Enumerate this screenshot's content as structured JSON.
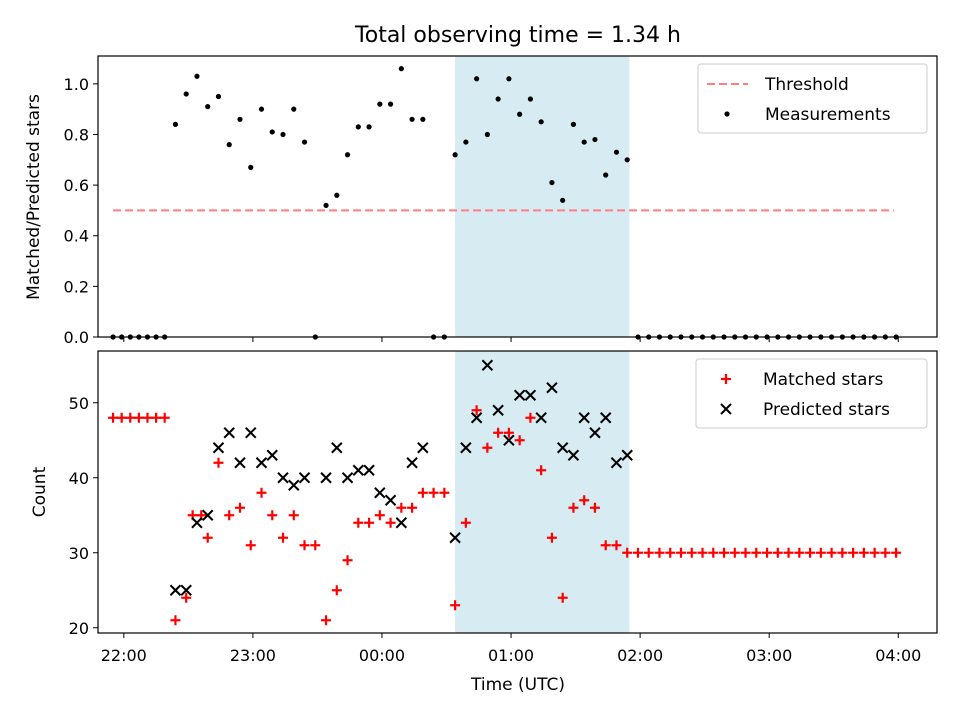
{
  "colors": {
    "threshold": "#ff7f7f",
    "measurements": "#000000",
    "matched": "#ff0000",
    "predicted": "#000000",
    "highlight": "#add8e6"
  },
  "chart_data": [
    {
      "type": "scatter",
      "title": "Total observing time = 1.34 h",
      "xlabel": "",
      "ylabel": "Matched/Predicted stars",
      "xlim": [
        "21:48",
        "04:18"
      ],
      "ylim": [
        0,
        1.11
      ],
      "yticks": [
        "0.0",
        "0.2",
        "0.4",
        "0.6",
        "0.8",
        "1.0"
      ],
      "grid": false,
      "legend_position": "top-right",
      "highlight_span": [
        "00:34",
        "01:55"
      ],
      "series": [
        {
          "name": "Threshold",
          "style": "dashed-line",
          "x": [
            "21:55",
            "03:58"
          ],
          "y": [
            0.5,
            0.5
          ]
        },
        {
          "name": "Measurements",
          "style": "dots",
          "points": [
            [
              "21:55",
              0
            ],
            [
              "21:59",
              0
            ],
            [
              "22:03",
              0
            ],
            [
              "22:07",
              0
            ],
            [
              "22:11",
              0
            ],
            [
              "22:15",
              0
            ],
            [
              "22:19",
              0
            ],
            [
              "22:24",
              0.84
            ],
            [
              "22:29",
              0.96
            ],
            [
              "22:34",
              1.03
            ],
            [
              "22:39",
              0.91
            ],
            [
              "22:44",
              0.95
            ],
            [
              "22:49",
              0.76
            ],
            [
              "22:54",
              0.86
            ],
            [
              "22:59",
              0.67
            ],
            [
              "23:04",
              0.9
            ],
            [
              "23:09",
              0.81
            ],
            [
              "23:14",
              0.8
            ],
            [
              "23:19",
              0.9
            ],
            [
              "23:24",
              0.77
            ],
            [
              "23:29",
              0
            ],
            [
              "23:34",
              0.52
            ],
            [
              "23:39",
              0.56
            ],
            [
              "23:44",
              0.72
            ],
            [
              "23:49",
              0.83
            ],
            [
              "23:54",
              0.83
            ],
            [
              "23:59",
              0.92
            ],
            [
              "00:04",
              0.92
            ],
            [
              "00:09",
              1.06
            ],
            [
              "00:14",
              0.86
            ],
            [
              "00:19",
              0.86
            ],
            [
              "00:24",
              0
            ],
            [
              "00:29",
              0
            ],
            [
              "00:34",
              0.72
            ],
            [
              "00:39",
              0.77
            ],
            [
              "00:44",
              1.02
            ],
            [
              "00:49",
              0.8
            ],
            [
              "00:54",
              0.94
            ],
            [
              "00:59",
              1.02
            ],
            [
              "01:04",
              0.88
            ],
            [
              "01:09",
              0.94
            ],
            [
              "01:14",
              0.85
            ],
            [
              "01:19",
              0.61
            ],
            [
              "01:24",
              0.54
            ],
            [
              "01:29",
              0.84
            ],
            [
              "01:34",
              0.77
            ],
            [
              "01:39",
              0.78
            ],
            [
              "01:44",
              0.64
            ],
            [
              "01:49",
              0.73
            ],
            [
              "01:54",
              0.7
            ],
            [
              "01:59",
              0
            ],
            [
              "02:04",
              0
            ],
            [
              "02:09",
              0
            ],
            [
              "02:14",
              0
            ],
            [
              "02:19",
              0
            ],
            [
              "02:24",
              0
            ],
            [
              "02:29",
              0
            ],
            [
              "02:34",
              0
            ],
            [
              "02:39",
              0
            ],
            [
              "02:44",
              0
            ],
            [
              "02:49",
              0
            ],
            [
              "02:54",
              0
            ],
            [
              "02:59",
              0
            ],
            [
              "03:04",
              0
            ],
            [
              "03:09",
              0
            ],
            [
              "03:14",
              0
            ],
            [
              "03:19",
              0
            ],
            [
              "03:24",
              0
            ],
            [
              "03:29",
              0
            ],
            [
              "03:34",
              0
            ],
            [
              "03:39",
              0
            ],
            [
              "03:44",
              0
            ],
            [
              "03:49",
              0
            ],
            [
              "03:54",
              0
            ],
            [
              "03:59",
              0
            ]
          ]
        }
      ]
    },
    {
      "type": "scatter",
      "title": "",
      "xlabel": "Time (UTC)",
      "ylabel": "Count",
      "xlim": [
        "21:48",
        "04:18"
      ],
      "ylim": [
        19.3,
        56.9
      ],
      "yticks": [
        "20",
        "30",
        "40",
        "50"
      ],
      "xticks": [
        "22:00",
        "23:00",
        "00:00",
        "01:00",
        "02:00",
        "03:00",
        "04:00"
      ],
      "grid": false,
      "legend_position": "top-right",
      "highlight_span": [
        "00:34",
        "01:55"
      ],
      "series": [
        {
          "name": "Matched stars",
          "marker": "plus",
          "points": [
            [
              "21:55",
              48
            ],
            [
              "21:59",
              48
            ],
            [
              "22:03",
              48
            ],
            [
              "22:07",
              48
            ],
            [
              "22:11",
              48
            ],
            [
              "22:15",
              48
            ],
            [
              "22:19",
              48
            ],
            [
              "22:24",
              21
            ],
            [
              "22:29",
              24
            ],
            [
              "22:32",
              35
            ],
            [
              "22:36",
              35
            ],
            [
              "22:39",
              32
            ],
            [
              "22:44",
              42
            ],
            [
              "22:49",
              35
            ],
            [
              "22:54",
              36
            ],
            [
              "22:59",
              31
            ],
            [
              "23:04",
              38
            ],
            [
              "23:09",
              35
            ],
            [
              "23:14",
              32
            ],
            [
              "23:19",
              35
            ],
            [
              "23:24",
              31
            ],
            [
              "23:29",
              31
            ],
            [
              "23:34",
              21
            ],
            [
              "23:39",
              25
            ],
            [
              "23:44",
              29
            ],
            [
              "23:49",
              34
            ],
            [
              "23:54",
              34
            ],
            [
              "23:59",
              35
            ],
            [
              "00:04",
              34
            ],
            [
              "00:09",
              36
            ],
            [
              "00:14",
              36
            ],
            [
              "00:19",
              38
            ],
            [
              "00:24",
              38
            ],
            [
              "00:29",
              38
            ],
            [
              "00:34",
              23
            ],
            [
              "00:39",
              34
            ],
            [
              "00:44",
              49
            ],
            [
              "00:49",
              44
            ],
            [
              "00:54",
              46
            ],
            [
              "00:59",
              46
            ],
            [
              "01:04",
              45
            ],
            [
              "01:09",
              48
            ],
            [
              "01:14",
              41
            ],
            [
              "01:19",
              32
            ],
            [
              "01:24",
              24
            ],
            [
              "01:29",
              36
            ],
            [
              "01:34",
              37
            ],
            [
              "01:39",
              36
            ],
            [
              "01:44",
              31
            ],
            [
              "01:49",
              31
            ],
            [
              "01:54",
              30
            ],
            [
              "01:59",
              30
            ],
            [
              "02:04",
              30
            ],
            [
              "02:09",
              30
            ],
            [
              "02:14",
              30
            ],
            [
              "02:19",
              30
            ],
            [
              "02:24",
              30
            ],
            [
              "02:29",
              30
            ],
            [
              "02:34",
              30
            ],
            [
              "02:39",
              30
            ],
            [
              "02:44",
              30
            ],
            [
              "02:49",
              30
            ],
            [
              "02:54",
              30
            ],
            [
              "02:59",
              30
            ],
            [
              "03:04",
              30
            ],
            [
              "03:09",
              30
            ],
            [
              "03:14",
              30
            ],
            [
              "03:19",
              30
            ],
            [
              "03:24",
              30
            ],
            [
              "03:29",
              30
            ],
            [
              "03:34",
              30
            ],
            [
              "03:39",
              30
            ],
            [
              "03:44",
              30
            ],
            [
              "03:49",
              30
            ],
            [
              "03:54",
              30
            ],
            [
              "03:59",
              30
            ]
          ]
        },
        {
          "name": "Predicted stars",
          "marker": "x",
          "points": [
            [
              "22:24",
              25
            ],
            [
              "22:29",
              25
            ],
            [
              "22:34",
              34
            ],
            [
              "22:39",
              35
            ],
            [
              "22:44",
              44
            ],
            [
              "22:49",
              46
            ],
            [
              "22:54",
              42
            ],
            [
              "22:59",
              46
            ],
            [
              "23:04",
              42
            ],
            [
              "23:09",
              43
            ],
            [
              "23:14",
              40
            ],
            [
              "23:19",
              39
            ],
            [
              "23:24",
              40
            ],
            [
              "23:34",
              40
            ],
            [
              "23:39",
              44
            ],
            [
              "23:44",
              40
            ],
            [
              "23:49",
              41
            ],
            [
              "23:54",
              41
            ],
            [
              "23:59",
              38
            ],
            [
              "00:04",
              37
            ],
            [
              "00:09",
              34
            ],
            [
              "00:14",
              42
            ],
            [
              "00:19",
              44
            ],
            [
              "00:34",
              32
            ],
            [
              "00:39",
              44
            ],
            [
              "00:44",
              48
            ],
            [
              "00:49",
              55
            ],
            [
              "00:54",
              49
            ],
            [
              "00:59",
              45
            ],
            [
              "01:04",
              51
            ],
            [
              "01:09",
              51
            ],
            [
              "01:14",
              48
            ],
            [
              "01:19",
              52
            ],
            [
              "01:24",
              44
            ],
            [
              "01:29",
              43
            ],
            [
              "01:34",
              48
            ],
            [
              "01:39",
              46
            ],
            [
              "01:44",
              48
            ],
            [
              "01:49",
              42
            ],
            [
              "01:54",
              43
            ]
          ]
        }
      ]
    }
  ]
}
